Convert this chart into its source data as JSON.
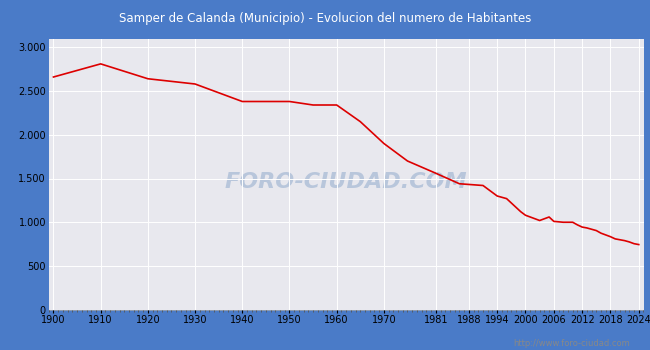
{
  "title": "Samper de Calanda (Municipio) - Evolucion del numero de Habitantes",
  "title_bg_color": "#4a7bc8",
  "title_text_color": "#ffffff",
  "plot_bg_color": "#e8e8ee",
  "grid_color": "#ffffff",
  "line_color": "#dd0000",
  "line_width": 1.2,
  "watermark_text": "FORO-CIUDAD.COM",
  "watermark_color": "#b0c0d8",
  "url_text": "http://www.foro-ciudad.com",
  "url_color": "#888888",
  "years": [
    1900,
    1910,
    1920,
    1930,
    1940,
    1950,
    1955,
    1960,
    1965,
    1970,
    1975,
    1981,
    1986,
    1991,
    1994,
    1996,
    1999,
    2000,
    2001,
    2002,
    2003,
    2004,
    2005,
    2006,
    2007,
    2008,
    2009,
    2010,
    2011,
    2012,
    2013,
    2014,
    2015,
    2016,
    2017,
    2018,
    2019,
    2020,
    2021,
    2022,
    2023,
    2024
  ],
  "population": [
    2660,
    2810,
    2640,
    2580,
    2380,
    2380,
    2340,
    2340,
    2150,
    1900,
    1700,
    1560,
    1440,
    1420,
    1300,
    1270,
    1120,
    1080,
    1060,
    1040,
    1020,
    1040,
    1060,
    1010,
    1005,
    1000,
    1000,
    1000,
    970,
    945,
    935,
    920,
    905,
    875,
    855,
    835,
    810,
    800,
    790,
    775,
    755,
    745
  ],
  "yticks": [
    0,
    500,
    1000,
    1500,
    2000,
    2500,
    3000
  ],
  "xtick_labels": [
    "1900",
    "1910",
    "1920",
    "1930",
    "1940",
    "1950",
    "1960",
    "1970",
    "1981",
    "1988",
    "1994",
    "2000",
    "2006",
    "2012",
    "2018",
    "2024"
  ],
  "xtick_positions": [
    1900,
    1910,
    1920,
    1930,
    1940,
    1950,
    1960,
    1970,
    1981,
    1988,
    1994,
    2000,
    2006,
    2012,
    2018,
    2024
  ],
  "ylim": [
    0,
    3100
  ],
  "xlim": [
    1899,
    2025
  ],
  "fig_width": 6.5,
  "fig_height": 3.5,
  "dpi": 100,
  "outer_border_color": "#4a7bc8"
}
